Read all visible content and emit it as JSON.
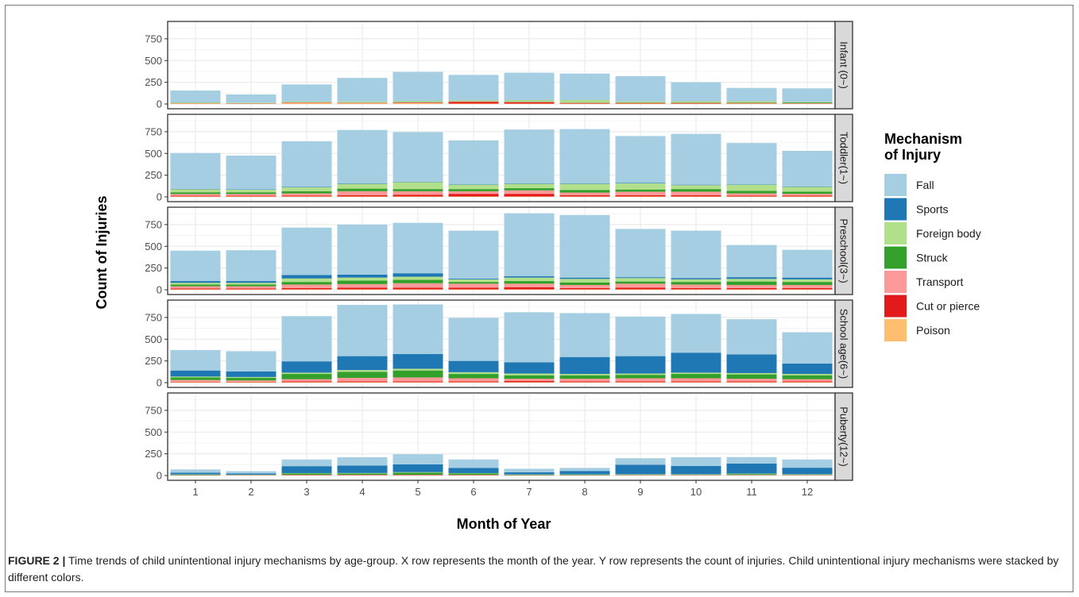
{
  "figure": {
    "caption_label": "FIGURE 2 |",
    "caption_text": " Time trends of child unintentional injury mechanisms by age-group. X row represents the month of the year. Y row represents the count of injuries. Child unintentional injury mechanisms were stacked by different colors."
  },
  "chart_data": {
    "type": "bar",
    "stacked": true,
    "facets_layout": "rows",
    "xlabel": "Month of Year",
    "ylabel": "Count of Injuries",
    "categories": [
      "1",
      "2",
      "3",
      "4",
      "5",
      "6",
      "7",
      "8",
      "9",
      "10",
      "11",
      "12"
    ],
    "ylim": [
      0,
      950
    ],
    "yticks": [
      0,
      250,
      500,
      750
    ],
    "grid": true,
    "legend": {
      "title_line1": "Mechanism",
      "title_line2": "of Injury",
      "position": "right",
      "order": [
        "Fall",
        "Sports",
        "Foreign body",
        "Struck",
        "Transport",
        "Cut or pierce",
        "Poison"
      ]
    },
    "colors": {
      "Fall": "#a6cee3",
      "Sports": "#1f78b4",
      "Foreign body": "#b2df8a",
      "Struck": "#33a02c",
      "Transport": "#fb9a99",
      "Cut or pierce": "#e31a1c",
      "Poison": "#fdbf6f"
    },
    "stack_order": [
      "Poison",
      "Cut or pierce",
      "Transport",
      "Struck",
      "Foreign body",
      "Sports",
      "Fall"
    ],
    "facets": [
      {
        "label": "Infant (0~)",
        "series": [
          {
            "name": "Poison",
            "values": [
              5,
              3,
              10,
              8,
              10,
              5,
              5,
              5,
              5,
              5,
              5,
              3
            ]
          },
          {
            "name": "Cut or pierce",
            "values": [
              2,
              2,
              3,
              3,
              4,
              20,
              15,
              5,
              4,
              4,
              3,
              3
            ]
          },
          {
            "name": "Transport",
            "values": [
              3,
              3,
              5,
              5,
              6,
              5,
              5,
              5,
              5,
              5,
              5,
              4
            ]
          },
          {
            "name": "Struck",
            "values": [
              3,
              2,
              3,
              3,
              3,
              3,
              5,
              5,
              5,
              5,
              6,
              8
            ]
          },
          {
            "name": "Foreign body",
            "values": [
              5,
              5,
              8,
              10,
              12,
              10,
              15,
              25,
              10,
              12,
              12,
              5
            ]
          },
          {
            "name": "Sports",
            "values": [
              0,
              0,
              0,
              1,
              1,
              1,
              1,
              1,
              1,
              2,
              2,
              1
            ]
          },
          {
            "name": "Fall",
            "values": [
              137,
              95,
              196,
              270,
              334,
              291,
              314,
              304,
              290,
              217,
              152,
              156
            ]
          }
        ]
      },
      {
        "label": "Toddler(1~)",
        "series": [
          {
            "name": "Poison",
            "values": [
              5,
              5,
              5,
              5,
              5,
              5,
              5,
              5,
              5,
              5,
              5,
              5
            ]
          },
          {
            "name": "Cut or pierce",
            "values": [
              8,
              8,
              10,
              15,
              20,
              30,
              30,
              15,
              15,
              15,
              10,
              10
            ]
          },
          {
            "name": "Transport",
            "values": [
              20,
              20,
              25,
              45,
              40,
              30,
              40,
              30,
              40,
              40,
              25,
              20
            ]
          },
          {
            "name": "Struck",
            "values": [
              20,
              20,
              25,
              30,
              25,
              25,
              25,
              30,
              25,
              30,
              30,
              25
            ]
          },
          {
            "name": "Foreign body",
            "values": [
              35,
              30,
              45,
              55,
              80,
              50,
              50,
              70,
              70,
              45,
              70,
              55
            ]
          },
          {
            "name": "Sports",
            "values": [
              5,
              5,
              5,
              5,
              5,
              5,
              5,
              5,
              5,
              5,
              5,
              5
            ]
          },
          {
            "name": "Fall",
            "values": [
              412,
              387,
              525,
              615,
              570,
              505,
              620,
              625,
              540,
              585,
              475,
              410
            ]
          }
        ]
      },
      {
        "label": "Preschool(3~)",
        "series": [
          {
            "name": "Poison",
            "values": [
              5,
              5,
              5,
              5,
              5,
              5,
              5,
              5,
              5,
              5,
              5,
              5
            ]
          },
          {
            "name": "Cut or pierce",
            "values": [
              10,
              10,
              15,
              20,
              20,
              20,
              25,
              15,
              20,
              15,
              15,
              15
            ]
          },
          {
            "name": "Transport",
            "values": [
              25,
              25,
              40,
              40,
              50,
              45,
              40,
              35,
              45,
              40,
              35,
              35
            ]
          },
          {
            "name": "Struck",
            "values": [
              20,
              20,
              30,
              40,
              40,
              20,
              30,
              30,
              25,
              30,
              40,
              35
            ]
          },
          {
            "name": "Foreign body",
            "values": [
              20,
              20,
              40,
              35,
              35,
              30,
              40,
              40,
              40,
              30,
              30,
              30
            ]
          },
          {
            "name": "Sports",
            "values": [
              20,
              20,
              40,
              35,
              40,
              10,
              15,
              15,
              10,
              15,
              20,
              20
            ]
          },
          {
            "name": "Fall",
            "values": [
              350,
              355,
              545,
              575,
              580,
              550,
              725,
              720,
              555,
              545,
              370,
              320
            ]
          }
        ]
      },
      {
        "label": "School age(6~)",
        "series": [
          {
            "name": "Poison",
            "values": [
              5,
              5,
              5,
              5,
              5,
              5,
              5,
              5,
              5,
              5,
              5,
              5
            ]
          },
          {
            "name": "Cut or pierce",
            "values": [
              5,
              5,
              10,
              10,
              10,
              10,
              15,
              10,
              10,
              10,
              10,
              10
            ]
          },
          {
            "name": "Transport",
            "values": [
              20,
              15,
              25,
              40,
              45,
              35,
              25,
              30,
              35,
              35,
              30,
              25
            ]
          },
          {
            "name": "Struck",
            "values": [
              30,
              30,
              60,
              70,
              80,
              50,
              40,
              40,
              40,
              50,
              50,
              45
            ]
          },
          {
            "name": "Foreign body",
            "values": [
              10,
              10,
              15,
              20,
              20,
              20,
              20,
              15,
              15,
              15,
              15,
              15
            ]
          },
          {
            "name": "Sports",
            "values": [
              70,
              65,
              130,
              160,
              170,
              130,
              130,
              195,
              200,
              230,
              215,
              120
            ]
          },
          {
            "name": "Fall",
            "values": [
              235,
              232,
              520,
              590,
              570,
              495,
              575,
              505,
              455,
              445,
              405,
              360
            ]
          }
        ]
      },
      {
        "label": "Puberty(12~)",
        "series": [
          {
            "name": "Poison",
            "values": [
              0,
              0,
              1,
              1,
              1,
              1,
              0,
              0,
              1,
              1,
              1,
              1
            ]
          },
          {
            "name": "Cut or pierce",
            "values": [
              2,
              2,
              3,
              3,
              3,
              3,
              2,
              2,
              2,
              2,
              2,
              2
            ]
          },
          {
            "name": "Transport",
            "values": [
              3,
              3,
              4,
              5,
              5,
              4,
              3,
              3,
              4,
              4,
              4,
              4
            ]
          },
          {
            "name": "Struck",
            "values": [
              5,
              3,
              15,
              15,
              25,
              15,
              5,
              5,
              5,
              5,
              10,
              5
            ]
          },
          {
            "name": "Foreign body",
            "values": [
              3,
              2,
              5,
              5,
              5,
              5,
              3,
              3,
              3,
              3,
              5,
              3
            ]
          },
          {
            "name": "Sports",
            "values": [
              20,
              15,
              80,
              85,
              90,
              60,
              25,
              40,
              110,
              95,
              115,
              75
            ]
          },
          {
            "name": "Fall",
            "values": [
              37,
              25,
              77,
              96,
              116,
              97,
              40,
              35,
              74,
              100,
              75,
              95
            ]
          }
        ]
      }
    ]
  }
}
